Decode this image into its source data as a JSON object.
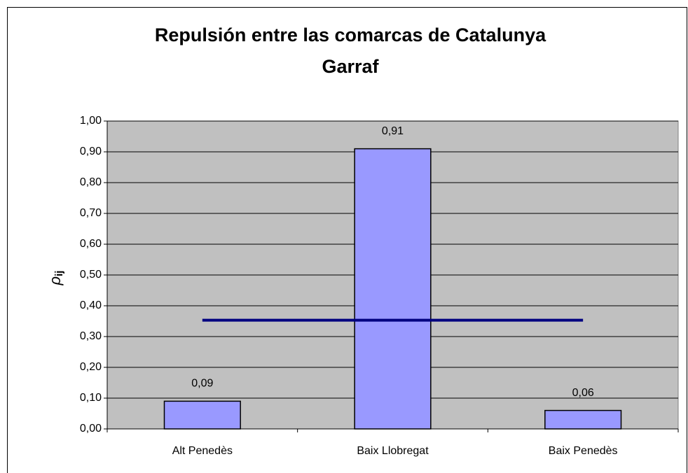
{
  "chart_data": {
    "type": "bar",
    "title": "Repulsión entre las comarcas de Catalunya",
    "subtitle": "Garraf",
    "y_label": "ρ",
    "y_label_subscript": "ij",
    "categories": [
      "Alt Penedès",
      "Baix Llobregat",
      "Baix Penedès"
    ],
    "values": [
      0.09,
      0.91,
      0.06
    ],
    "value_labels": [
      "0,09",
      "0,91",
      "0,06"
    ],
    "color": "#9999ff",
    "line_values": [
      0.353,
      0.353,
      0.353
    ],
    "line_color": "#000080",
    "ylim": [
      0,
      1
    ],
    "yticks": [
      {
        "value": 0,
        "label": "0,00"
      },
      {
        "value": 0.1,
        "label": "0,10"
      },
      {
        "value": 0.2,
        "label": "0,20"
      },
      {
        "value": 0.3,
        "label": "0,30"
      },
      {
        "value": 0.4,
        "label": "0,40"
      },
      {
        "value": 0.5,
        "label": "0,50"
      },
      {
        "value": 0.6,
        "label": "0,60"
      },
      {
        "value": 0.7,
        "label": "0,70"
      },
      {
        "value": 0.8,
        "label": "0,80"
      },
      {
        "value": 0.9,
        "label": "0,90"
      },
      {
        "value": 1,
        "label": "1,00"
      }
    ],
    "grid": true,
    "plot_background": "#c0c0c0"
  }
}
